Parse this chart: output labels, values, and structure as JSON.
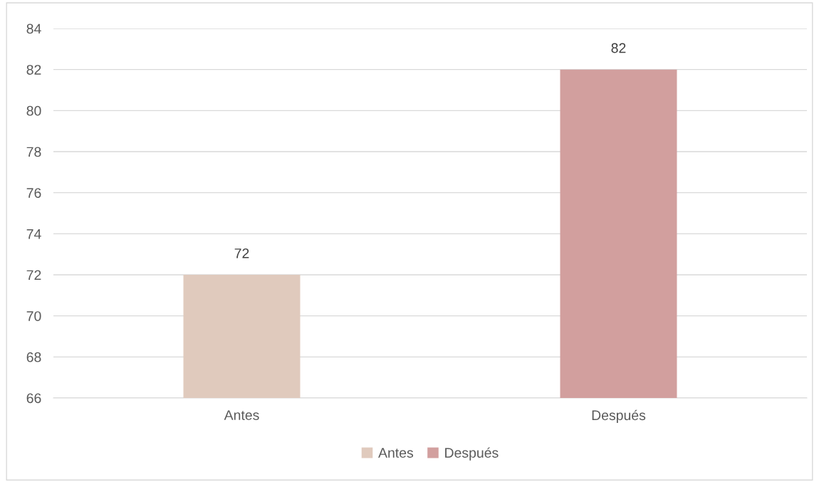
{
  "chart_data": {
    "type": "bar",
    "categories": [
      "Antes",
      "Después"
    ],
    "series": [
      {
        "name": "Antes",
        "color": "#e0cabd",
        "values": [
          72,
          null
        ]
      },
      {
        "name": "Después",
        "color": "#d29f9e",
        "values": [
          null,
          82
        ]
      }
    ],
    "ylim": [
      66,
      84
    ],
    "yticks": [
      66,
      68,
      70,
      72,
      74,
      76,
      78,
      80,
      82,
      84
    ],
    "grid": "y",
    "legend": "bottom",
    "data_labels": true
  }
}
